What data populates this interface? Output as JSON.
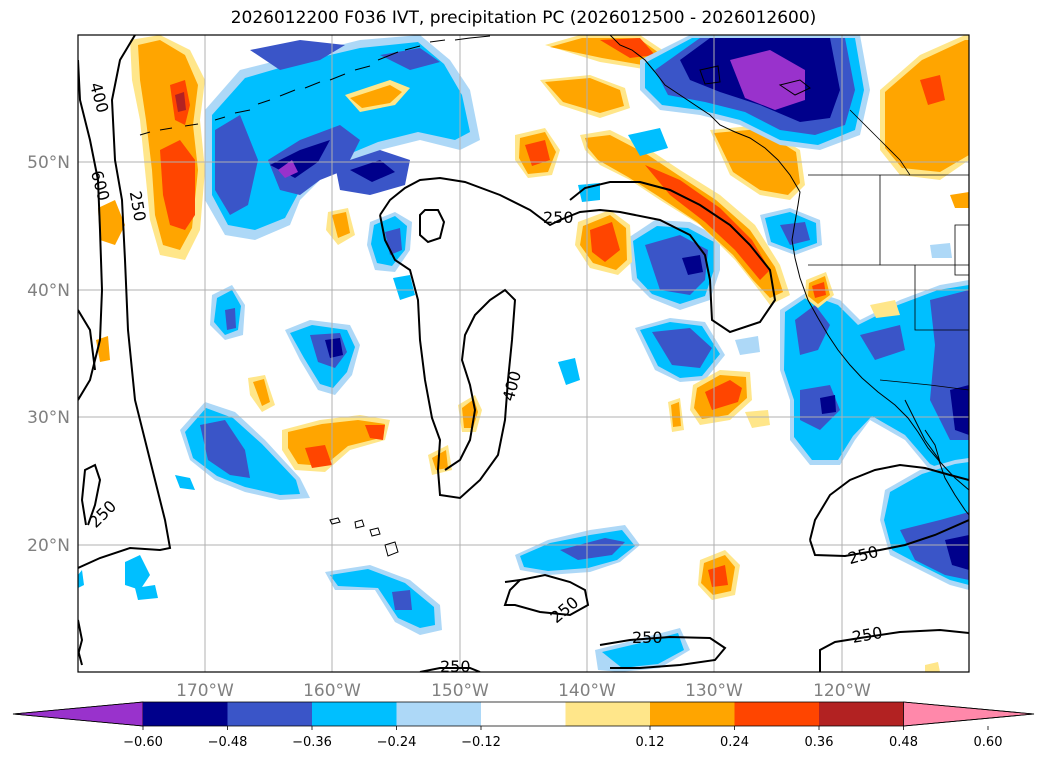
{
  "title": "2026012200 F036 IVT, precipitation PC (2026012500 - 2026012600)",
  "latitude_labels": [
    "50°N",
    "40°N",
    "30°N",
    "20°N"
  ],
  "longitude_labels": [
    "170°W",
    "160°W",
    "150°W",
    "140°W",
    "130°W",
    "120°W"
  ],
  "contour_labels": [
    "400",
    "600",
    "250",
    "250",
    "400",
    "250",
    "250",
    "250",
    "250",
    "250",
    "250"
  ],
  "colorbar": {
    "tick_labels": [
      "−0.60",
      "−0.48",
      "−0.36",
      "−0.24",
      "−0.12",
      "0.12",
      "0.24",
      "0.36",
      "0.48",
      "0.60"
    ],
    "colors": [
      "#9932cc",
      "#00008b",
      "#3a55c8",
      "#00bfff",
      "#add8f7",
      "#ffffff",
      "#ffe68a",
      "#ffa500",
      "#ff4500",
      "#b22222",
      "#ff88aa"
    ]
  },
  "shading_colors": {
    "neg_060": "#9932cc",
    "neg_048": "#00008b",
    "neg_036": "#3a55c8",
    "neg_024": "#00bfff",
    "neg_012": "#add8f7",
    "pos_012": "#ffe68a",
    "pos_024": "#ffa500",
    "pos_036": "#ff4500",
    "pos_048": "#b22222"
  }
}
